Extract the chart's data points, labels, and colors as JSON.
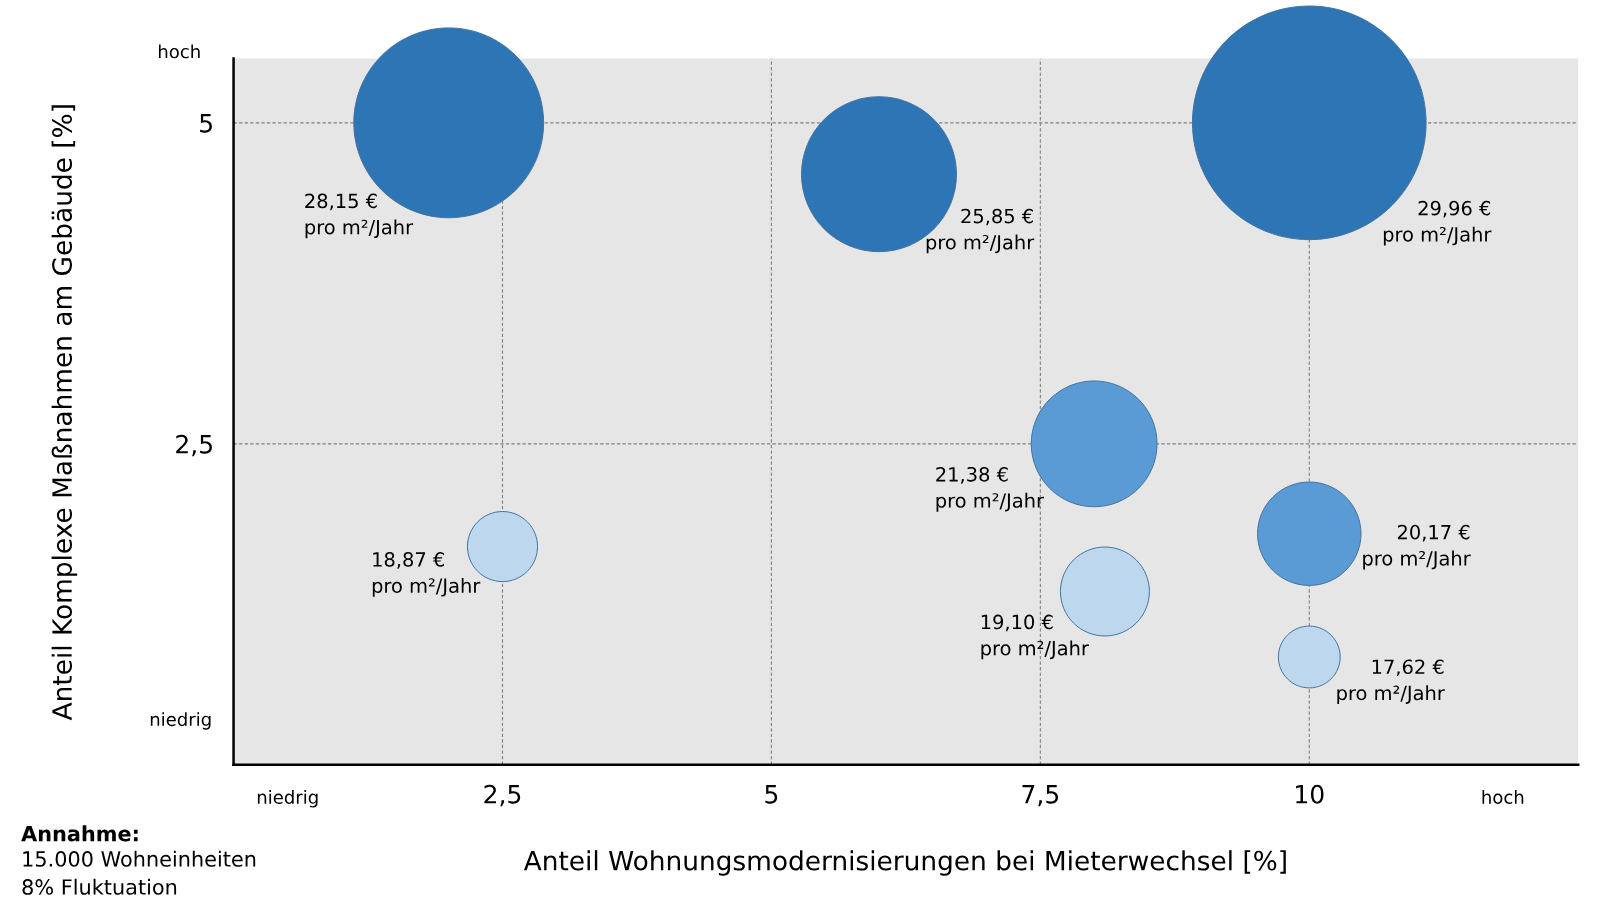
{
  "chart_data": {
    "type": "bubble",
    "xlabel": "Anteil Wohnungsmodernisierungen bei Mieterwechsel [%]",
    "ylabel": "Anteil Komplexe Maßnahmen am Gebäude [%]",
    "x": [
      2,
      6,
      10,
      8,
      2.5,
      8.1,
      10,
      10
    ],
    "values": [
      5,
      4.6,
      5,
      2.5,
      1.7,
      1.35,
      1.8,
      0.84
    ],
    "sizes": [
      0.66,
      0.44,
      1,
      0.29,
      0.09,
      0.145,
      0.196,
      0.07
    ],
    "colors": [
      "#2e75b6",
      "#2e75b6",
      "#2e75b6",
      "#5b9bd5",
      "#bdd7ee",
      "#bdd7ee",
      "#5b9bd5",
      "#bdd7ee"
    ],
    "xlim": [
      0,
      12.5
    ],
    "ylim": [
      0,
      5.5
    ],
    "xticks": [
      {
        "value": 2.5,
        "label": "2,5"
      },
      5,
      {
        "value": 7.5,
        "label": "7,5"
      },
      10
    ],
    "yticks": [
      {
        "value": 2.5,
        "label": "2,5"
      },
      5
    ],
    "grid": true,
    "annotations": [
      "28,15 €\npro m²/Jahr",
      "25,85 €\npro m²/Jahr",
      "29,96 €\npro m²/Jahr",
      "21,38 €\npro m²/Jahr",
      "18,87 €\npro m²/Jahr",
      "19,10 €\npro m²/Jahr",
      "20,17 €\npro m²/Jahr",
      "17,62 €\npro m²/Jahr",
      "niedrig",
      "hoch",
      "niedrig",
      "hoch",
      "Annahme:",
      "15.000 Wohneinheiten\n8% Fluktuation"
    ]
  }
}
